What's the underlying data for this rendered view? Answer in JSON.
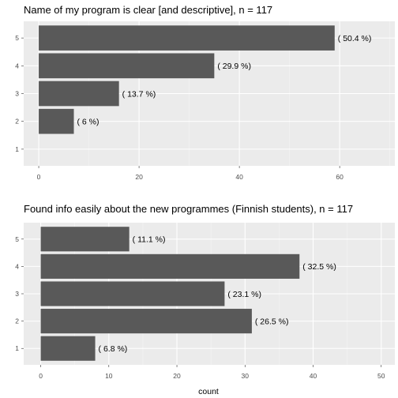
{
  "chart_data": [
    {
      "type": "bar",
      "orientation": "horizontal",
      "title": "Name of my program is clear [and descriptive], n = 117",
      "xlabel": "",
      "ylabel": "",
      "categories": [
        "1",
        "2",
        "3",
        "4",
        "5"
      ],
      "values": [
        0,
        7,
        16,
        35,
        59
      ],
      "value_labels": [
        "",
        "( 6 %)",
        "( 13.7 %)",
        "( 29.9 %)",
        "( 50.4 %)"
      ],
      "xlim": [
        -3,
        71
      ],
      "x_ticks": [
        0,
        20,
        40,
        60
      ],
      "grid": true,
      "bar_color": "#595959",
      "panel_color": "#ebebeb"
    },
    {
      "type": "bar",
      "orientation": "horizontal",
      "title": "Found info easily about the new programmes (Finnish students), n = 117",
      "xlabel": "count",
      "ylabel": "",
      "categories": [
        "1",
        "2",
        "3",
        "4",
        "5"
      ],
      "values": [
        8,
        31,
        27,
        38,
        13
      ],
      "value_labels": [
        "( 6.8 %)",
        "( 26.5 %)",
        "( 23.1 %)",
        "( 32.5 %)",
        "( 11.1 %)"
      ],
      "xlim": [
        -2.5,
        52
      ],
      "x_ticks": [
        0,
        10,
        20,
        30,
        40,
        50
      ],
      "grid": true,
      "bar_color": "#595959",
      "panel_color": "#ebebeb"
    }
  ]
}
